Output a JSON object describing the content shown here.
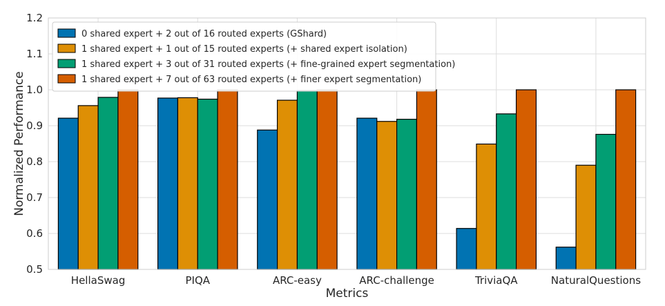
{
  "chart_data": {
    "type": "bar",
    "xlabel": "Metrics",
    "ylabel": "Normalized Performance",
    "ylim": [
      0.5,
      1.2
    ],
    "yticks": [
      "0.5",
      "0.6",
      "0.7",
      "0.8",
      "0.9",
      "1.0",
      "1.1",
      "1.2"
    ],
    "grid": true,
    "legend_position": "top-left",
    "categories": [
      "HellaSwag",
      "PIQA",
      "ARC-easy",
      "ARC-challenge",
      "TriviaQA",
      "NaturalQuestions"
    ],
    "series": [
      {
        "name": "0 shared expert + 2 out of 16 routed experts (GShard)",
        "color": "#0173b2",
        "values": [
          0.921,
          0.977,
          0.888,
          0.921,
          0.614,
          0.562
        ]
      },
      {
        "name": "1 shared expert + 1 out of 15 routed experts (+ shared expert isolation)",
        "color": "#de8f05",
        "values": [
          0.956,
          0.978,
          0.971,
          0.912,
          0.849,
          0.79
        ]
      },
      {
        "name": "1 shared expert + 3 out of 31 routed experts (+ fine-grained expert segmentation)",
        "color": "#029e73",
        "values": [
          0.979,
          0.974,
          0.998,
          0.918,
          0.933,
          0.876
        ]
      },
      {
        "name": "1 shared expert + 7 out of 63 routed experts (+ finer expert segmentation)",
        "color": "#d55e00",
        "values": [
          1.0,
          1.0,
          1.0,
          1.0,
          1.0,
          1.0
        ]
      }
    ]
  }
}
